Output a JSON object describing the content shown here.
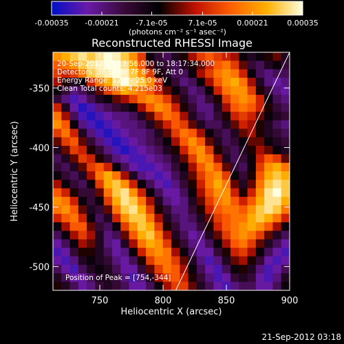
{
  "chart_data": {
    "type": "heatmap",
    "title": "Reconstructed RHESSI Image",
    "xlabel": "Heliocentric X (arcsec)",
    "ylabel": "Heliocentric Y (arcsec)",
    "xlim": [
      713,
      900
    ],
    "ylim": [
      -520,
      -320
    ],
    "x_ticks": [
      750,
      800,
      850,
      900
    ],
    "y_ticks": [
      -350,
      -400,
      -450,
      -500
    ],
    "colorbar": {
      "range": [
        -0.00035,
        0.00035
      ],
      "ticks": [
        -0.00035,
        -0.00021,
        -7.1e-05,
        7.1e-05,
        0.00021,
        0.00035
      ],
      "tick_labels": [
        "-0.00035",
        "-0.00021",
        "-7.1e-05",
        "7.1e-05",
        "0.00021",
        "0.00035"
      ],
      "label": "(photons cm⁻² s⁻¹ asec⁻²)",
      "colors": [
        "#0010c8",
        "#6a1aa8",
        "#3a0a3a",
        "#000000",
        "#c01000",
        "#ff6000",
        "#ffb000",
        "#ffffe0"
      ]
    },
    "annotations": [
      "20-Sep-2012 18:13:56.000 to 18:17:34.000",
      "Detectors: 3F 5F 6F 7F 8F 9F, Att 0",
      "Energy Range: 12.0 - 25.0 keV",
      "Clean    Total counts: 4.215e03"
    ],
    "peak_label": "Position of Peak = [754,-344]",
    "peak": [
      754,
      -344
    ],
    "limb_line": [
      [
        810,
        -520
      ],
      [
        900,
        -320
      ]
    ],
    "grid_values": [
      [
        0.6,
        0.7,
        0.8,
        0.9,
        0.8,
        0.9,
        1.0,
        0.95,
        0.8,
        0.6,
        0.3,
        -0.2,
        -0.4,
        -0.5,
        -0.3,
        -0.1,
        0.1,
        0.3,
        0.4,
        0.3,
        0.2,
        0.1,
        -0.2,
        -0.3,
        -0.2,
        -0.1,
        0.0,
        -0.3
      ],
      [
        0.4,
        0.5,
        0.6,
        0.8,
        0.9,
        0.95,
        1.0,
        1.0,
        0.9,
        0.7,
        0.4,
        0.0,
        -0.3,
        -0.4,
        -0.5,
        -0.3,
        -0.1,
        0.0,
        0.2,
        0.4,
        0.5,
        0.3,
        0.0,
        -0.4,
        -0.5,
        -0.3,
        -0.2,
        -0.4
      ],
      [
        0.3,
        0.2,
        0.3,
        0.5,
        0.8,
        0.9,
        0.95,
        1.0,
        0.95,
        0.8,
        0.6,
        0.3,
        -0.1,
        -0.3,
        -0.5,
        -0.5,
        -0.2,
        0.1,
        0.3,
        0.5,
        0.6,
        0.5,
        0.2,
        -0.2,
        -0.5,
        -0.6,
        -0.5,
        -0.5
      ],
      [
        0.1,
        -0.1,
        -0.3,
        -0.2,
        0.2,
        0.5,
        0.7,
        0.9,
        1.0,
        0.9,
        0.8,
        0.6,
        0.2,
        -0.2,
        -0.4,
        -0.6,
        -0.5,
        -0.2,
        0.1,
        0.4,
        0.6,
        0.7,
        0.5,
        0.1,
        -0.3,
        -0.6,
        -0.7,
        -0.6
      ],
      [
        -0.2,
        -0.4,
        -0.6,
        -0.5,
        -0.3,
        0.0,
        0.3,
        0.5,
        0.7,
        0.6,
        0.5,
        0.4,
        0.2,
        0.0,
        -0.2,
        -0.4,
        -0.6,
        -0.5,
        -0.2,
        0.2,
        0.5,
        0.6,
        0.6,
        0.3,
        -0.1,
        -0.4,
        -0.6,
        -0.7
      ],
      [
        -0.4,
        -0.6,
        -0.8,
        -0.7,
        -0.5,
        -0.3,
        -0.2,
        0.0,
        0.1,
        0.3,
        0.5,
        0.6,
        0.5,
        0.3,
        0.0,
        -0.3,
        -0.5,
        -0.6,
        -0.4,
        -0.1,
        0.3,
        0.5,
        0.6,
        0.5,
        0.2,
        -0.2,
        -0.5,
        -0.6
      ],
      [
        0.2,
        -0.3,
        -0.7,
        -0.9,
        -0.8,
        -0.6,
        -0.5,
        -0.4,
        -0.3,
        -0.2,
        0.1,
        0.4,
        0.6,
        0.5,
        0.2,
        -0.1,
        -0.4,
        -0.6,
        -0.6,
        -0.3,
        0.1,
        0.4,
        0.5,
        0.4,
        0.2,
        -0.1,
        -0.4,
        -0.5
      ],
      [
        0.5,
        0.1,
        -0.5,
        -0.8,
        -0.9,
        -0.8,
        -0.7,
        -0.6,
        -0.6,
        -0.5,
        -0.3,
        0.0,
        0.3,
        0.5,
        0.4,
        0.1,
        -0.3,
        -0.5,
        -0.6,
        -0.4,
        -0.1,
        0.2,
        0.3,
        0.2,
        0.0,
        -0.2,
        -0.3,
        -0.4
      ],
      [
        0.6,
        0.4,
        -0.2,
        -0.6,
        -0.8,
        -0.9,
        -0.8,
        -0.7,
        -0.6,
        -0.6,
        -0.5,
        -0.3,
        0.0,
        0.2,
        0.4,
        0.3,
        0.0,
        -0.3,
        -0.5,
        -0.5,
        -0.3,
        0.0,
        0.2,
        0.1,
        -0.1,
        -0.3,
        -0.5,
        -0.6
      ],
      [
        0.3,
        0.5,
        0.2,
        -0.3,
        -0.6,
        -0.8,
        -0.9,
        -0.8,
        -0.7,
        -0.6,
        -0.6,
        -0.5,
        -0.3,
        0.0,
        0.3,
        0.5,
        0.4,
        0.1,
        -0.2,
        -0.4,
        -0.5,
        -0.3,
        0.0,
        0.1,
        -0.1,
        -0.3,
        -0.4,
        -0.5
      ],
      [
        0.0,
        0.3,
        0.4,
        0.0,
        -0.4,
        -0.6,
        -0.8,
        -0.9,
        -0.8,
        -0.7,
        -0.6,
        -0.5,
        -0.4,
        -0.2,
        0.1,
        0.4,
        0.6,
        0.4,
        0.0,
        -0.3,
        -0.5,
        -0.4,
        -0.2,
        0.0,
        0.0,
        -0.2,
        -0.3,
        -0.4
      ],
      [
        -0.3,
        0.0,
        0.3,
        0.2,
        -0.1,
        -0.4,
        -0.6,
        -0.8,
        -0.9,
        -0.8,
        -0.7,
        -0.6,
        -0.5,
        -0.3,
        -0.1,
        0.2,
        0.5,
        0.6,
        0.3,
        -0.1,
        -0.4,
        -0.5,
        -0.3,
        -0.1,
        0.1,
        0.0,
        -0.2,
        -0.3
      ],
      [
        -0.5,
        -0.3,
        0.0,
        0.3,
        0.2,
        -0.1,
        -0.4,
        -0.6,
        -0.7,
        -0.8,
        -0.8,
        -0.7,
        -0.6,
        -0.5,
        -0.3,
        0.0,
        0.3,
        0.6,
        0.5,
        0.1,
        -0.3,
        -0.5,
        -0.4,
        -0.2,
        0.2,
        0.4,
        0.3,
        0.0
      ],
      [
        -0.4,
        -0.5,
        -0.3,
        0.0,
        0.3,
        0.4,
        0.2,
        -0.2,
        -0.5,
        -0.7,
        -0.8,
        -0.8,
        -0.7,
        -0.6,
        -0.4,
        -0.2,
        0.1,
        0.4,
        0.6,
        0.4,
        0.0,
        -0.4,
        -0.5,
        -0.2,
        0.3,
        0.6,
        0.7,
        0.5
      ],
      [
        -0.2,
        -0.4,
        -0.5,
        -0.3,
        0.1,
        0.5,
        0.7,
        0.5,
        0.1,
        -0.3,
        -0.6,
        -0.7,
        -0.8,
        -0.7,
        -0.5,
        -0.3,
        0.0,
        0.3,
        0.5,
        0.6,
        0.3,
        -0.2,
        -0.4,
        -0.1,
        0.4,
        0.7,
        0.8,
        0.7
      ],
      [
        0.1,
        -0.2,
        -0.4,
        -0.5,
        -0.2,
        0.3,
        0.7,
        0.8,
        0.6,
        0.2,
        -0.2,
        -0.5,
        -0.7,
        -0.8,
        -0.6,
        -0.4,
        -0.1,
        0.2,
        0.5,
        0.7,
        0.5,
        0.0,
        -0.3,
        0.0,
        0.5,
        0.8,
        0.9,
        0.8
      ],
      [
        0.4,
        0.2,
        -0.1,
        -0.4,
        -0.4,
        0.0,
        0.5,
        0.8,
        0.9,
        0.6,
        0.2,
        -0.2,
        -0.5,
        -0.7,
        -0.7,
        -0.5,
        -0.2,
        0.1,
        0.4,
        0.6,
        0.6,
        0.2,
        -0.1,
        0.2,
        0.6,
        0.9,
        1.0,
        0.8
      ],
      [
        0.6,
        0.5,
        0.2,
        -0.2,
        -0.4,
        -0.2,
        0.3,
        0.7,
        0.9,
        0.8,
        0.5,
        0.1,
        -0.3,
        -0.6,
        -0.7,
        -0.6,
        -0.3,
        0.0,
        0.3,
        0.5,
        0.6,
        0.4,
        0.2,
        0.4,
        0.7,
        0.9,
        0.9,
        0.7
      ],
      [
        0.5,
        0.6,
        0.4,
        0.0,
        -0.3,
        -0.4,
        0.0,
        0.5,
        0.8,
        0.9,
        0.7,
        0.3,
        -0.1,
        -0.4,
        -0.6,
        -0.6,
        -0.4,
        -0.1,
        0.2,
        0.4,
        0.5,
        0.5,
        0.4,
        0.6,
        0.8,
        0.9,
        0.8,
        0.5
      ],
      [
        0.2,
        0.4,
        0.5,
        0.2,
        -0.2,
        -0.5,
        -0.3,
        0.2,
        0.6,
        0.8,
        0.8,
        0.5,
        0.1,
        -0.3,
        -0.5,
        -0.6,
        -0.5,
        -0.3,
        0.0,
        0.3,
        0.4,
        0.5,
        0.5,
        0.7,
        0.8,
        0.7,
        0.5,
        0.2
      ],
      [
        -0.2,
        0.1,
        0.4,
        0.4,
        0.0,
        -0.4,
        -0.5,
        -0.2,
        0.3,
        0.6,
        0.8,
        0.7,
        0.3,
        -0.1,
        -0.4,
        -0.6,
        -0.6,
        -0.4,
        -0.1,
        0.2,
        0.4,
        0.5,
        0.6,
        0.7,
        0.6,
        0.4,
        0.1,
        -0.2
      ],
      [
        -0.5,
        -0.2,
        0.1,
        0.3,
        0.1,
        -0.3,
        -0.6,
        -0.5,
        0.0,
        0.4,
        0.7,
        0.8,
        0.5,
        0.1,
        -0.3,
        -0.5,
        -0.7,
        -0.6,
        -0.3,
        0.0,
        0.3,
        0.5,
        0.6,
        0.5,
        0.3,
        0.0,
        -0.3,
        -0.5
      ],
      [
        -0.7,
        -0.5,
        -0.2,
        0.1,
        0.0,
        -0.3,
        -0.6,
        -0.7,
        -0.3,
        0.1,
        0.5,
        0.7,
        0.6,
        0.3,
        -0.1,
        -0.4,
        -0.6,
        -0.7,
        -0.5,
        -0.2,
        0.1,
        0.4,
        0.5,
        0.3,
        0.0,
        -0.3,
        -0.5,
        -0.7
      ],
      [
        -0.8,
        -0.7,
        -0.4,
        -0.1,
        -0.1,
        -0.3,
        -0.5,
        -0.7,
        -0.6,
        -0.2,
        0.2,
        0.5,
        0.6,
        0.5,
        0.1,
        -0.2,
        -0.5,
        -0.7,
        -0.7,
        -0.4,
        -0.1,
        0.2,
        0.3,
        0.1,
        -0.2,
        -0.5,
        -0.7,
        -0.8
      ],
      [
        -0.7,
        -0.8,
        -0.6,
        -0.3,
        -0.2,
        -0.3,
        -0.4,
        -0.6,
        -0.7,
        -0.5,
        -0.1,
        0.3,
        0.5,
        0.5,
        0.3,
        0.0,
        -0.3,
        -0.6,
        -0.8,
        -0.6,
        -0.3,
        0.0,
        0.1,
        -0.1,
        -0.4,
        -0.7,
        -0.8,
        -0.7
      ],
      [
        -0.5,
        -0.7,
        -0.8,
        -0.5,
        -0.3,
        -0.2,
        -0.3,
        -0.5,
        -0.7,
        -0.7,
        -0.4,
        0.0,
        0.3,
        0.5,
        0.4,
        0.1,
        -0.2,
        -0.5,
        -0.7,
        -0.8,
        -0.5,
        -0.2,
        -0.1,
        -0.3,
        -0.6,
        -0.8,
        -0.7,
        -0.5
      ],
      [
        -0.3,
        -0.5,
        -0.7,
        -0.7,
        -0.5,
        -0.3,
        -0.3,
        -0.4,
        -0.6,
        -0.8,
        -0.6,
        -0.3,
        0.1,
        0.3,
        0.4,
        0.2,
        -0.1,
        -0.4,
        -0.6,
        -0.8,
        -0.7,
        -0.4,
        -0.3,
        -0.4,
        -0.7,
        -0.8,
        -0.6,
        -0.3
      ],
      [
        -0.1,
        -0.3,
        -0.5,
        -0.7,
        -0.6,
        -0.4,
        -0.3,
        -0.4,
        -0.5,
        -0.7,
        -0.7,
        -0.5,
        -0.2,
        0.1,
        0.3,
        0.3,
        0.0,
        -0.3,
        -0.5,
        -0.7,
        -0.8,
        -0.6,
        -0.5,
        -0.5,
        -0.7,
        -0.7,
        -0.5,
        -0.2
      ]
    ]
  },
  "footer": {
    "timestamp": "21-Sep-2012 03:18"
  }
}
